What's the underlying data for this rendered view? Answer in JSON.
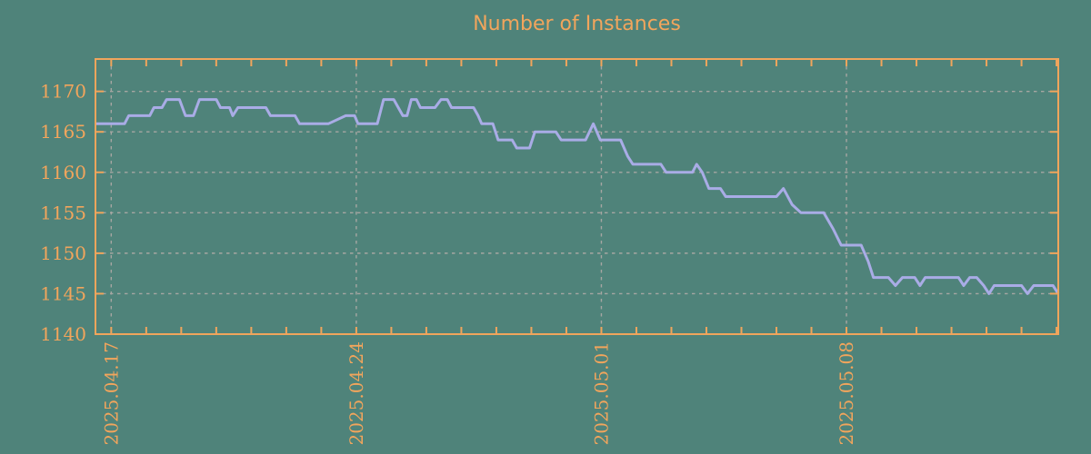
{
  "title": "Number of Instances",
  "colors": {
    "background": "#4f837a",
    "axis_frame": "#f0a55c",
    "label_text": "#f2a55c",
    "grid": "#a6a6a2",
    "series_line": "#a9ace6"
  },
  "chart_data": {
    "type": "line",
    "title": "Number of Instances",
    "xlabel": "",
    "ylabel": "",
    "x_unit": "days since 2025.04.17",
    "xlim": [
      -0.45,
      27.05
    ],
    "ylim": [
      1140,
      1174
    ],
    "grid": true,
    "legend": "none",
    "y_ticks": [
      1140,
      1145,
      1150,
      1155,
      1160,
      1165,
      1170
    ],
    "x_minor_tick_interval_days": 1,
    "x_major_ticks": [
      {
        "day": 0,
        "label": "2025.04.17"
      },
      {
        "day": 7,
        "label": "2025.04.24"
      },
      {
        "day": 14,
        "label": "2025.05.01"
      },
      {
        "day": 21,
        "label": "2025.05.08"
      }
    ],
    "series": [
      {
        "name": "Number of Instances",
        "points": [
          [
            -0.45,
            1166
          ],
          [
            0.38,
            1166
          ],
          [
            0.5,
            1167
          ],
          [
            1.1,
            1167
          ],
          [
            1.22,
            1168
          ],
          [
            1.45,
            1168
          ],
          [
            1.58,
            1169
          ],
          [
            1.95,
            1169
          ],
          [
            2.12,
            1167
          ],
          [
            2.35,
            1167
          ],
          [
            2.52,
            1169
          ],
          [
            3.0,
            1169
          ],
          [
            3.12,
            1168
          ],
          [
            3.38,
            1168
          ],
          [
            3.47,
            1167
          ],
          [
            3.62,
            1168
          ],
          [
            4.42,
            1168
          ],
          [
            4.55,
            1167
          ],
          [
            5.25,
            1167
          ],
          [
            5.38,
            1166
          ],
          [
            6.2,
            1166
          ],
          [
            6.7,
            1167
          ],
          [
            6.95,
            1167
          ],
          [
            7.05,
            1166
          ],
          [
            7.6,
            1166
          ],
          [
            7.78,
            1169
          ],
          [
            8.07,
            1169
          ],
          [
            8.33,
            1167
          ],
          [
            8.45,
            1167
          ],
          [
            8.57,
            1169
          ],
          [
            8.72,
            1169
          ],
          [
            8.83,
            1168
          ],
          [
            9.25,
            1168
          ],
          [
            9.42,
            1169
          ],
          [
            9.6,
            1169
          ],
          [
            9.72,
            1168
          ],
          [
            10.35,
            1168
          ],
          [
            10.48,
            1167
          ],
          [
            10.58,
            1166
          ],
          [
            10.9,
            1166
          ],
          [
            11.05,
            1164
          ],
          [
            11.45,
            1164
          ],
          [
            11.58,
            1163
          ],
          [
            11.95,
            1163
          ],
          [
            12.1,
            1165
          ],
          [
            12.7,
            1165
          ],
          [
            12.85,
            1164
          ],
          [
            13.55,
            1164
          ],
          [
            13.77,
            1166
          ],
          [
            13.97,
            1164
          ],
          [
            14.55,
            1164
          ],
          [
            14.75,
            1162
          ],
          [
            14.9,
            1161
          ],
          [
            15.7,
            1161
          ],
          [
            15.85,
            1160
          ],
          [
            16.6,
            1160
          ],
          [
            16.72,
            1161
          ],
          [
            16.88,
            1160
          ],
          [
            17.07,
            1158
          ],
          [
            17.4,
            1158
          ],
          [
            17.55,
            1157
          ],
          [
            19.0,
            1157
          ],
          [
            19.2,
            1158
          ],
          [
            19.45,
            1156
          ],
          [
            19.7,
            1155
          ],
          [
            20.35,
            1155
          ],
          [
            20.62,
            1153
          ],
          [
            20.85,
            1151
          ],
          [
            21.42,
            1151
          ],
          [
            21.62,
            1149
          ],
          [
            21.77,
            1147
          ],
          [
            22.2,
            1147
          ],
          [
            22.4,
            1146
          ],
          [
            22.6,
            1147
          ],
          [
            22.95,
            1147
          ],
          [
            23.1,
            1146
          ],
          [
            23.25,
            1147
          ],
          [
            24.2,
            1147
          ],
          [
            24.35,
            1146
          ],
          [
            24.52,
            1147
          ],
          [
            24.72,
            1147
          ],
          [
            24.92,
            1146
          ],
          [
            25.07,
            1145
          ],
          [
            25.22,
            1146
          ],
          [
            26.0,
            1146
          ],
          [
            26.17,
            1145
          ],
          [
            26.35,
            1146
          ],
          [
            26.9,
            1146
          ],
          [
            27.05,
            1145
          ]
        ]
      }
    ]
  }
}
